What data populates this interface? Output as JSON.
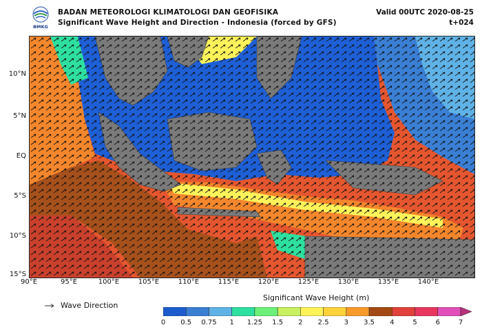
{
  "header": {
    "org_line": "BADAN METEOROLOGI KLIMATOLOGI DAN GEOFISIKA",
    "subtitle": "Significant Wave Height and Direction - Indonesia (forced by GFS)",
    "valid_time": "Valid 00UTC 2020-08-25",
    "forecast_step": "t+024",
    "logo_text": "BMKG"
  },
  "map": {
    "lat_labels": [
      "10°N",
      "5°N",
      "EQ",
      "5°S",
      "10°S",
      "15°S"
    ],
    "lon_labels": [
      "90°E",
      "95°E",
      "100°E",
      "105°E",
      "110°E",
      "115°E",
      "120°E",
      "125°E",
      "130°E",
      "135°E",
      "140°E"
    ]
  },
  "legend": {
    "direction_label": "Wave Direction",
    "colorbar_title": "Significant Wave Height (m)",
    "ticks": [
      "0",
      "0.5",
      "0.75",
      "1",
      "1.25",
      "1.5",
      "2",
      "2.5",
      "3",
      "3.5",
      "4",
      "5",
      "6",
      "7"
    ],
    "colors": [
      "#1c5ccf",
      "#3a7fd4",
      "#5fb2e6",
      "#2ee0a0",
      "#6cf07a",
      "#c8f060",
      "#fff35a",
      "#ffd23a",
      "#f79a2a",
      "#a34a12",
      "#e2403a",
      "#e8365f",
      "#e04fb8",
      "#b8317a"
    ]
  },
  "colors": {
    "land": "#7a7a7a",
    "calm": "#1e5fd6",
    "ocean_deep_swell": "#e5562f",
    "brown_swell": "#a6501c",
    "arrow": "#111111"
  }
}
